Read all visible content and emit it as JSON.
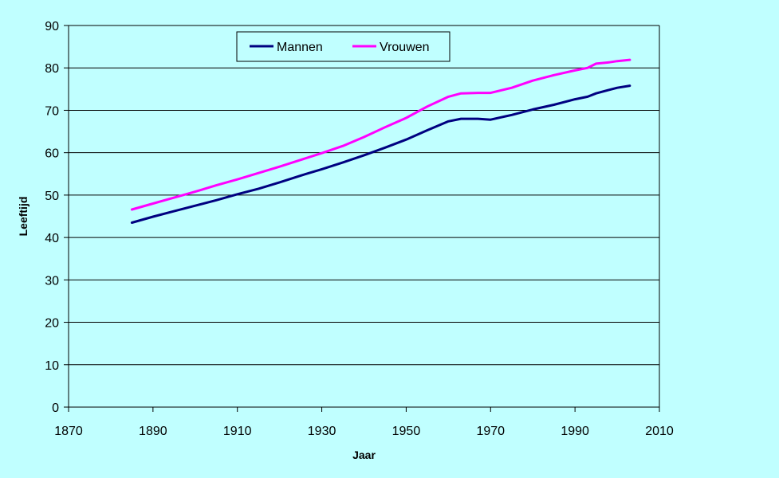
{
  "chart_data": {
    "type": "line",
    "title": "",
    "xlabel": "Jaar",
    "ylabel": "Leeftijd",
    "xlim": [
      1870,
      2010
    ],
    "ylim": [
      0,
      90
    ],
    "x_ticks": [
      1870,
      1890,
      1910,
      1930,
      1950,
      1970,
      1990,
      2010
    ],
    "y_ticks": [
      0,
      10,
      20,
      30,
      40,
      50,
      60,
      70,
      80,
      90
    ],
    "grid": "horizontal",
    "legend_position": "top-center",
    "series": [
      {
        "name": "Mannen",
        "color": "#000080",
        "points": [
          [
            1885,
            43.5
          ],
          [
            1890,
            44.9
          ],
          [
            1895,
            46.2
          ],
          [
            1900,
            47.5
          ],
          [
            1905,
            48.8
          ],
          [
            1910,
            50.2
          ],
          [
            1915,
            51.5
          ],
          [
            1920,
            53.0
          ],
          [
            1925,
            54.6
          ],
          [
            1930,
            56.1
          ],
          [
            1935,
            57.7
          ],
          [
            1940,
            59.4
          ],
          [
            1945,
            61.2
          ],
          [
            1950,
            63.1
          ],
          [
            1955,
            65.3
          ],
          [
            1960,
            67.4
          ],
          [
            1963,
            68.0
          ],
          [
            1967,
            68.0
          ],
          [
            1970,
            67.8
          ],
          [
            1975,
            68.9
          ],
          [
            1980,
            70.2
          ],
          [
            1985,
            71.3
          ],
          [
            1990,
            72.6
          ],
          [
            1993,
            73.2
          ],
          [
            1995,
            74.0
          ],
          [
            1998,
            74.8
          ],
          [
            2000,
            75.3
          ],
          [
            2003,
            75.8
          ]
        ]
      },
      {
        "name": "Vrouwen",
        "color": "#ff00ff",
        "points": [
          [
            1885,
            46.6
          ],
          [
            1890,
            48.0
          ],
          [
            1895,
            49.4
          ],
          [
            1900,
            50.8
          ],
          [
            1905,
            52.3
          ],
          [
            1910,
            53.7
          ],
          [
            1915,
            55.2
          ],
          [
            1920,
            56.7
          ],
          [
            1925,
            58.3
          ],
          [
            1930,
            59.9
          ],
          [
            1935,
            61.6
          ],
          [
            1940,
            63.7
          ],
          [
            1945,
            66.0
          ],
          [
            1950,
            68.2
          ],
          [
            1955,
            70.9
          ],
          [
            1960,
            73.2
          ],
          [
            1963,
            74.0
          ],
          [
            1967,
            74.1
          ],
          [
            1970,
            74.1
          ],
          [
            1975,
            75.3
          ],
          [
            1980,
            77.0
          ],
          [
            1985,
            78.3
          ],
          [
            1990,
            79.4
          ],
          [
            1993,
            80.0
          ],
          [
            1995,
            81.0
          ],
          [
            1998,
            81.3
          ],
          [
            2000,
            81.6
          ],
          [
            2003,
            81.9
          ]
        ]
      }
    ]
  }
}
